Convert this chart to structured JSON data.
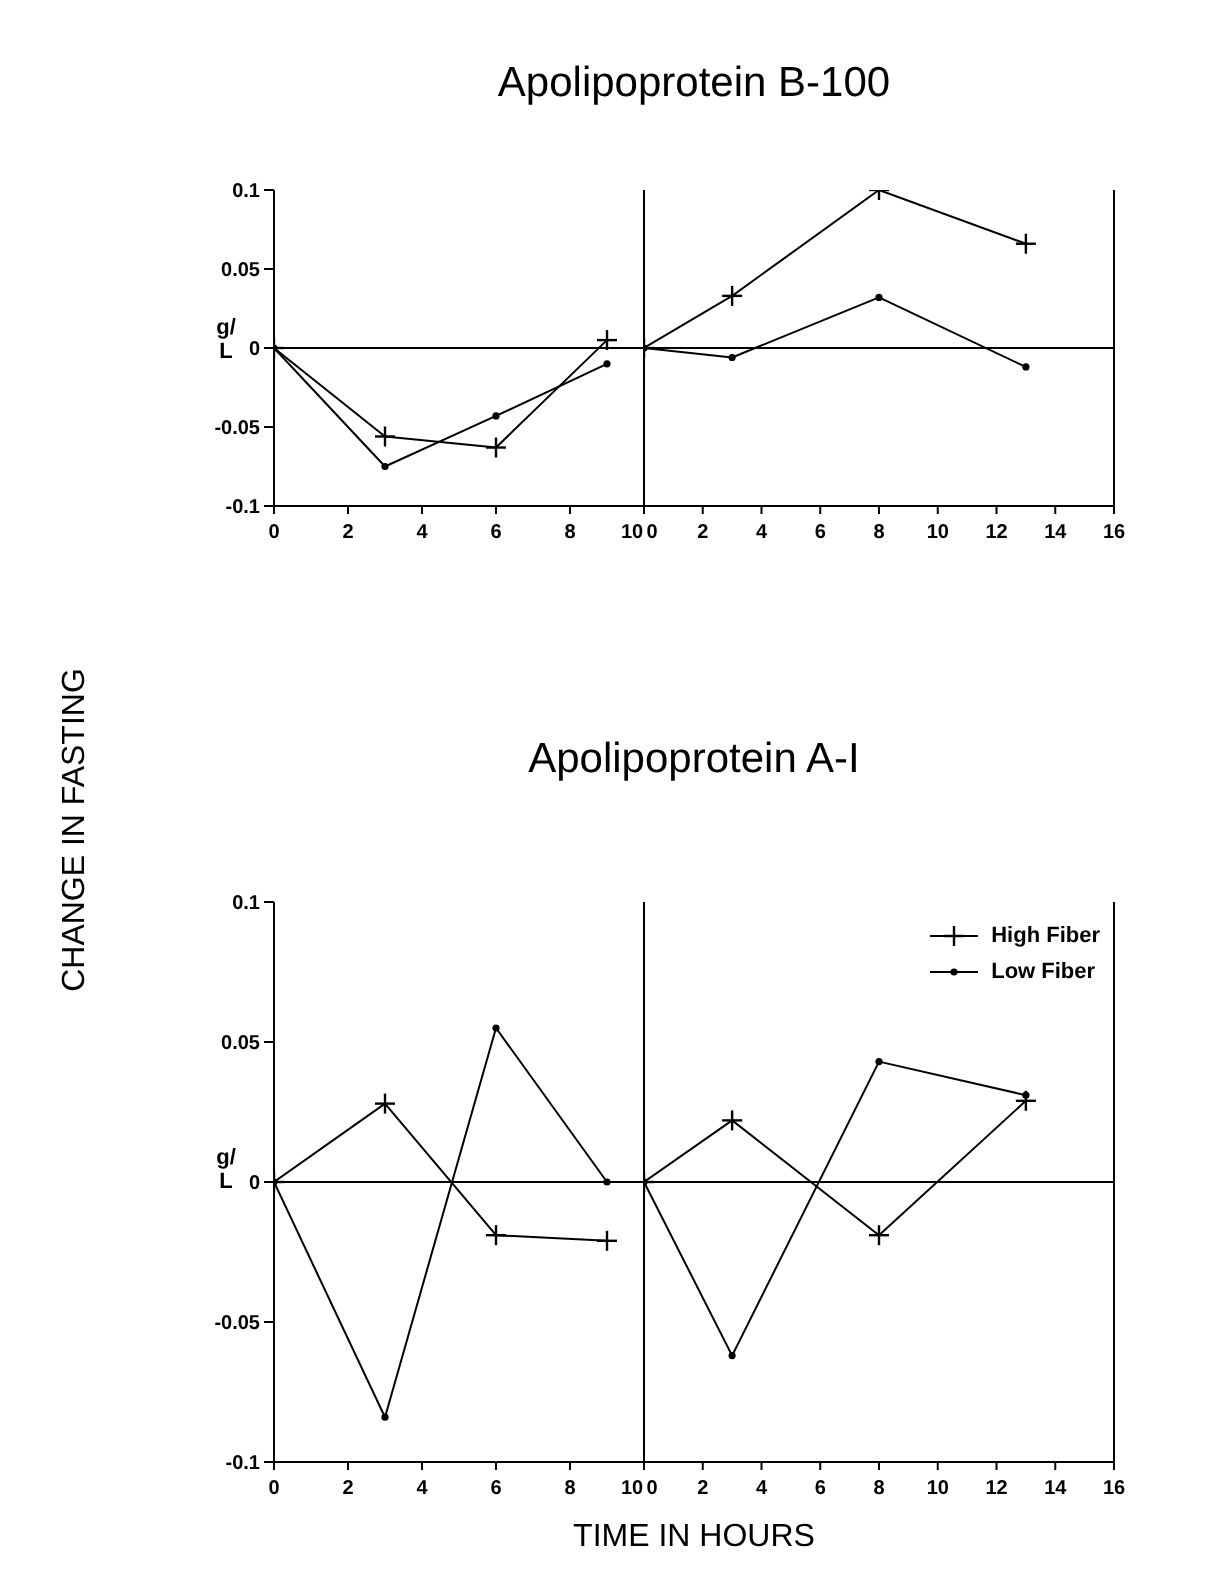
{
  "chart_data": [
    {
      "type": "line",
      "title": "Apolipoprotein B-100",
      "ylabel": "g/L",
      "annotations": [
        "CHANGE IN FASTING"
      ],
      "x": [
        0,
        3,
        6,
        9
      ],
      "xlim": [
        0,
        10
      ],
      "xticks": [
        0,
        2,
        4,
        6,
        8,
        10
      ],
      "ylim": [
        -0.1,
        0.1
      ],
      "yticks": [
        -0.1,
        -0.05,
        0,
        0.05,
        0.1
      ],
      "grid": false,
      "ref_lines": [
        {
          "axis": "y",
          "value": 0
        }
      ],
      "series": [
        {
          "color": "#000000",
          "marker": "cross",
          "values": [
            0,
            -0.056,
            -0.063,
            0.005
          ]
        },
        {
          "color": "#000000",
          "marker": "circle",
          "values": [
            0,
            -0.075,
            -0.043,
            -0.01
          ]
        }
      ]
    },
    {
      "type": "line",
      "x": [
        0,
        3,
        8,
        13
      ],
      "xlim": [
        0,
        16
      ],
      "xticks": [
        0,
        2,
        4,
        6,
        8,
        10,
        12,
        14,
        16
      ],
      "ylim": [
        -0.1,
        0.1
      ],
      "yticks": [
        -0.1,
        -0.05,
        0,
        0.05,
        0.1
      ],
      "tick_labels": "x",
      "grid": false,
      "ref_lines": [
        {
          "axis": "y",
          "value": 0
        }
      ],
      "series": [
        {
          "color": "#000000",
          "marker": "cross",
          "values": [
            0,
            0.033,
            0.1,
            0.066
          ]
        },
        {
          "color": "#000000",
          "marker": "circle",
          "values": [
            0,
            -0.006,
            0.032,
            -0.012
          ]
        }
      ]
    },
    {
      "type": "line",
      "title": "Apolipoprotein A-I",
      "ylabel": "g/L",
      "x": [
        0,
        3,
        6,
        9
      ],
      "xlim": [
        0,
        10
      ],
      "xticks": [
        0,
        2,
        4,
        6,
        8,
        10
      ],
      "ylim": [
        -0.1,
        0.1
      ],
      "yticks": [
        -0.1,
        -0.05,
        0,
        0.05,
        0.1
      ],
      "grid": false,
      "ref_lines": [
        {
          "axis": "y",
          "value": 0
        }
      ],
      "series": [
        {
          "color": "#000000",
          "marker": "cross",
          "values": [
            0,
            0.028,
            -0.019,
            -0.021
          ]
        },
        {
          "color": "#000000",
          "marker": "circle",
          "values": [
            0,
            -0.084,
            0.055,
            0
          ]
        }
      ]
    },
    {
      "type": "line",
      "xlabel": "TIME IN HOURS",
      "x": [
        0,
        3,
        8,
        13
      ],
      "xlim": [
        0,
        16
      ],
      "xticks": [
        0,
        2,
        4,
        6,
        8,
        10,
        12,
        14,
        16
      ],
      "ylim": [
        -0.1,
        0.1
      ],
      "yticks": [
        -0.1,
        -0.05,
        0,
        0.05,
        0.1
      ],
      "tick_labels": "x",
      "grid": false,
      "legend": "top right",
      "ref_lines": [
        {
          "axis": "y",
          "value": 0
        }
      ],
      "series": [
        {
          "name": "High Fiber",
          "color": "#000000",
          "marker": "cross",
          "values": [
            0,
            0.022,
            -0.019,
            0.029
          ]
        },
        {
          "name": "Low Fiber",
          "color": "#000000",
          "marker": "circle",
          "values": [
            0,
            -0.062,
            0.043,
            0.031
          ]
        }
      ]
    }
  ]
}
